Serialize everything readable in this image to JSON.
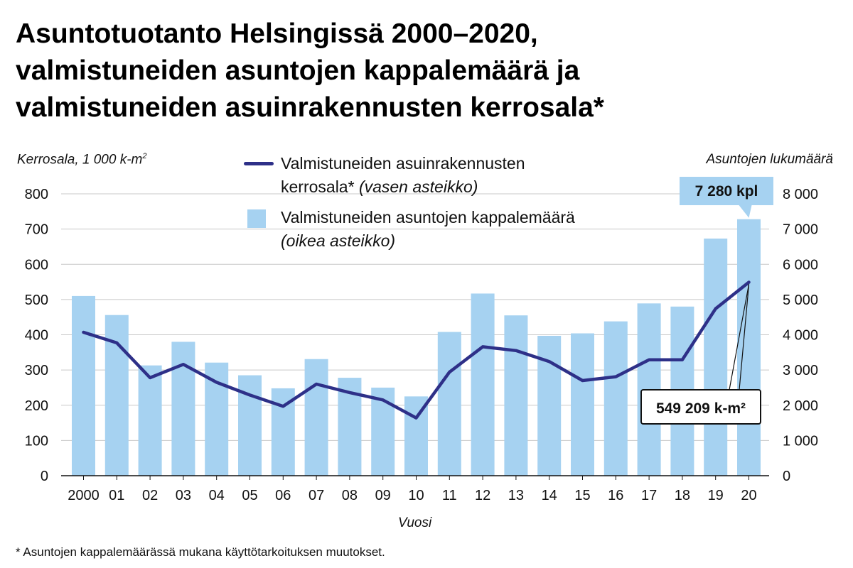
{
  "title_lines": [
    "Asuntotuotanto Helsingissä 2000–2020,",
    "valmistuneiden asuntojen kappalemäärä ja",
    "valmistuneiden asuinrakennusten kerrosala*"
  ],
  "left_axis_title": "Kerrosala, 1 000 k-m",
  "left_axis_title_sup": "2",
  "right_axis_title": "Asuntojen lukumäärä",
  "legend": {
    "line_label": "Valmistuneiden asuinrakennusten kerrosala*",
    "line_note": "(vasen asteikko)",
    "bar_label": "Valmistuneiden asuntojen kappalemäärä",
    "bar_note": "(oikea asteikko)"
  },
  "xlabel": "Vuosi",
  "footnote": "* Asuntojen kappalemäärässä mukana käyttötarkoituksen muutokset.",
  "colors": {
    "bars": "#a6d2f1",
    "line": "#2e3088",
    "callout_fill": "#a6d2f1",
    "grid": "#c8c8c8"
  },
  "chart_data": {
    "type": "bar",
    "categories": [
      "2000",
      "01",
      "02",
      "03",
      "04",
      "05",
      "06",
      "07",
      "08",
      "09",
      "10",
      "11",
      "12",
      "13",
      "14",
      "15",
      "16",
      "17",
      "18",
      "19",
      "20"
    ],
    "ylim": [
      0,
      800
    ],
    "y_ticks": [
      "800",
      "700",
      "600",
      "500",
      "400",
      "300",
      "200",
      "100",
      "0"
    ],
    "y2lim": [
      0,
      8000
    ],
    "y2_ticks": [
      "8 000",
      "7 000",
      "6 000",
      "5 000",
      "4 000",
      "3 000",
      "2 000",
      "1 000",
      "0"
    ],
    "series": [
      {
        "name": "Valmistuneiden asuntojen kappalemäärä",
        "type": "bar",
        "axis": "right",
        "values": [
          5100,
          4560,
          3130,
          3800,
          3210,
          2850,
          2480,
          3310,
          2780,
          2500,
          2250,
          4080,
          5170,
          4550,
          3970,
          4040,
          4380,
          4890,
          4800,
          6730,
          7280
        ]
      },
      {
        "name": "Valmistuneiden asuinrakennusten kerrosala*",
        "type": "line",
        "axis": "left",
        "values": [
          407,
          377,
          278,
          316,
          265,
          229,
          197,
          260,
          236,
          215,
          164,
          294,
          366,
          355,
          324,
          270,
          281,
          329,
          329,
          474,
          549.209
        ]
      }
    ],
    "annotations": [
      {
        "series": "Valmistuneiden asuntojen kappalemäärä",
        "category": "20",
        "text": "7 280 kpl"
      },
      {
        "series": "Valmistuneiden asuinrakennusten kerrosala*",
        "category": "20",
        "text": "549 209 k-m²"
      }
    ]
  }
}
